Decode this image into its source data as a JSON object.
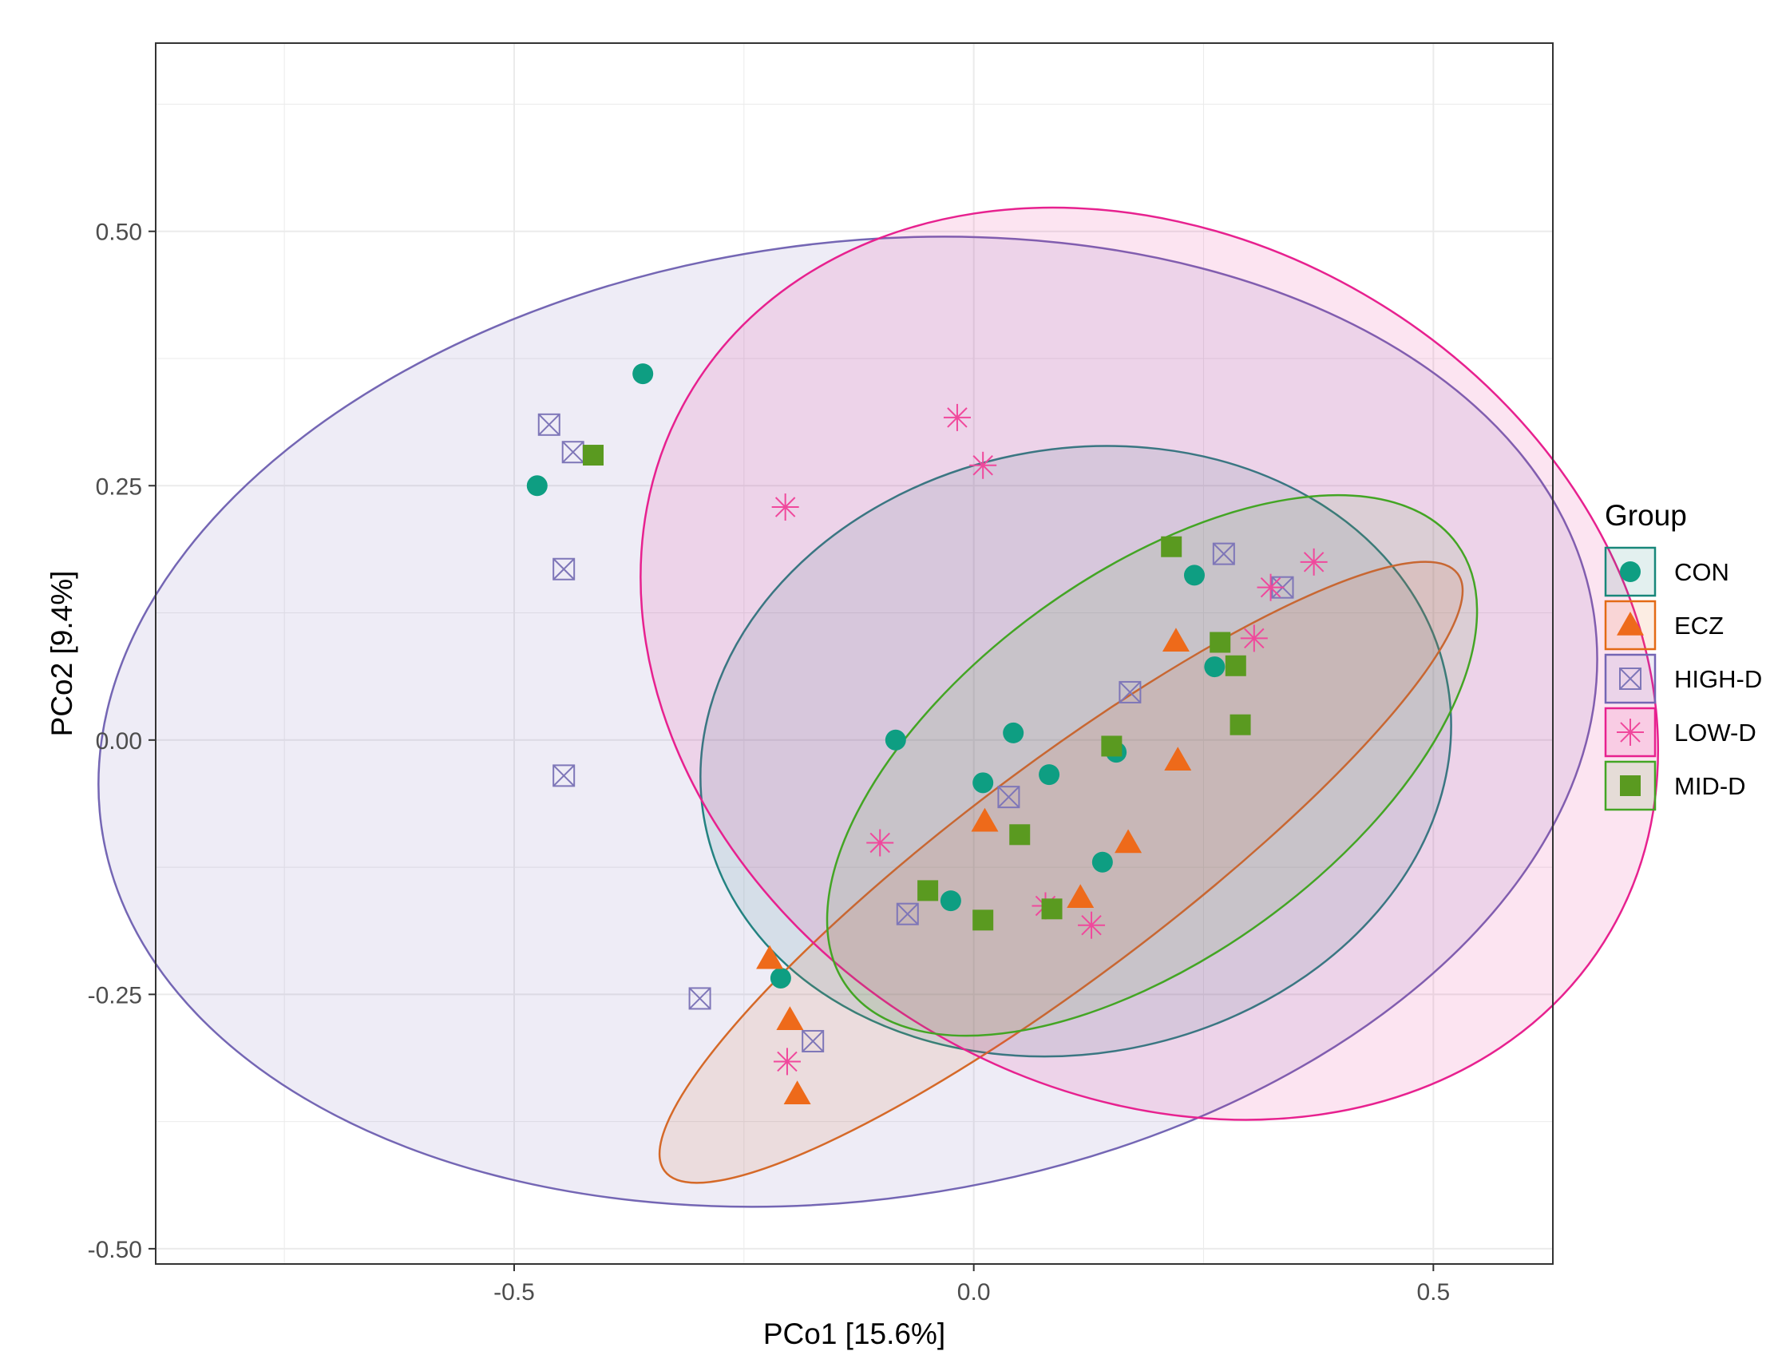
{
  "chart_data": {
    "type": "scatter",
    "title": "",
    "xlabel": "PCo1 [15.6%]",
    "ylabel": "PCo2 [9.4%]",
    "xlim": [
      -0.89,
      0.63
    ],
    "ylim": [
      -0.515,
      0.685
    ],
    "x_ticks": [
      -0.5,
      0.0,
      0.5
    ],
    "x_tick_labels": [
      "-0.5",
      "0.0",
      "0.5"
    ],
    "y_ticks": [
      -0.5,
      -0.25,
      0.0,
      0.25,
      0.5
    ],
    "y_tick_labels": [
      "-0.50",
      "-0.25",
      "0.00",
      "0.25",
      "0.50"
    ],
    "grid": true,
    "legend_title": "Group",
    "legend_position": "right",
    "series": [
      {
        "name": "CON",
        "shape": "circle",
        "color": "#0E9E82",
        "ellipse_color": "#18877A",
        "points": [
          [
            -0.36,
            0.36
          ],
          [
            -0.475,
            0.25
          ],
          [
            0.24,
            0.162
          ],
          [
            0.262,
            0.072
          ],
          [
            -0.085,
            0.0
          ],
          [
            0.043,
            0.007
          ],
          [
            0.155,
            -0.012
          ],
          [
            0.082,
            -0.034
          ],
          [
            0.01,
            -0.042
          ],
          [
            0.14,
            -0.12
          ],
          [
            -0.025,
            -0.158
          ],
          [
            -0.21,
            -0.234
          ]
        ],
        "ellipse": {
          "cx": 0.111,
          "cy": -0.011,
          "rx": 0.411,
          "ry": 0.297,
          "angle": -11
        }
      },
      {
        "name": "ECZ",
        "shape": "triangle",
        "color": "#EE6A1A",
        "ellipse_color": "#E36A15",
        "points": [
          [
            0.22,
            0.097
          ],
          [
            0.222,
            -0.02
          ],
          [
            0.012,
            -0.08
          ],
          [
            0.168,
            -0.101
          ],
          [
            0.116,
            -0.155
          ],
          [
            -0.222,
            -0.215
          ],
          [
            -0.2,
            -0.275
          ],
          [
            -0.192,
            -0.348
          ]
        ],
        "ellipse": {
          "cx": 0.095,
          "cy": -0.13,
          "rx": 0.54,
          "ry": 0.104,
          "angle": -37
        }
      },
      {
        "name": "HIGH-D",
        "shape": "square-x",
        "color": "#7E76B8",
        "ellipse_color": "#7466B4",
        "points": [
          [
            -0.462,
            0.31
          ],
          [
            -0.436,
            0.283
          ],
          [
            -0.446,
            0.168
          ],
          [
            0.272,
            0.183
          ],
          [
            0.336,
            0.15
          ],
          [
            0.17,
            0.047
          ],
          [
            0.038,
            -0.056
          ],
          [
            -0.446,
            -0.035
          ],
          [
            -0.072,
            -0.171
          ],
          [
            -0.298,
            -0.254
          ],
          [
            -0.175,
            -0.296
          ]
        ],
        "ellipse": {
          "cx": -0.137,
          "cy": 0.018,
          "rx": 0.82,
          "ry": 0.47,
          "angle": -8
        }
      },
      {
        "name": "LOW-D",
        "shape": "star",
        "color": "#F0489C",
        "ellipse_color": "#E7218F",
        "points": [
          [
            -0.018,
            0.317
          ],
          [
            0.01,
            0.27
          ],
          [
            -0.205,
            0.229
          ],
          [
            0.37,
            0.175
          ],
          [
            0.323,
            0.15
          ],
          [
            0.305,
            0.1
          ],
          [
            -0.102,
            -0.101
          ],
          [
            0.078,
            -0.163
          ],
          [
            0.128,
            -0.182
          ],
          [
            -0.203,
            -0.316
          ]
        ],
        "ellipse": {
          "cx": 0.191,
          "cy": 0.075,
          "rx": 0.58,
          "ry": 0.42,
          "angle": 30
        }
      },
      {
        "name": "MID-D",
        "shape": "square",
        "color": "#5A9A20",
        "ellipse_color": "#43A524",
        "points": [
          [
            -0.414,
            0.28
          ],
          [
            0.215,
            0.19
          ],
          [
            0.268,
            0.096
          ],
          [
            0.285,
            0.073
          ],
          [
            0.29,
            0.015
          ],
          [
            0.15,
            -0.006
          ],
          [
            0.05,
            -0.093
          ],
          [
            -0.05,
            -0.148
          ],
          [
            0.085,
            -0.166
          ],
          [
            0.01,
            -0.177
          ]
        ],
        "ellipse": {
          "cx": 0.194,
          "cy": -0.025,
          "rx": 0.41,
          "ry": 0.188,
          "angle": -36
        }
      }
    ]
  }
}
